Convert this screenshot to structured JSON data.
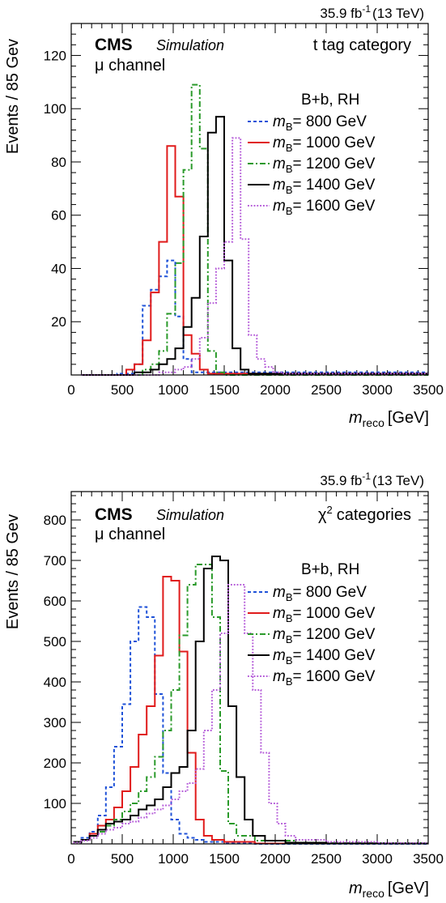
{
  "chart_data": [
    {
      "type": "histogram",
      "lumi_label": "35.9 fb",
      "lumi_sup": "-1",
      "energy": "(13 TeV)",
      "experiment": "CMS",
      "subtitle": "Simulation",
      "channel_symbol": "μ",
      "channel_text": "channel",
      "category": "t tag category",
      "category_math": "",
      "category_sup": "",
      "category_rest": "",
      "legend_header": "B+b, RH",
      "xlabel_var": "m",
      "xlabel_sub": "reco",
      "xlabel_unit": "[GeV]",
      "ylabel": "Events / 85 Gev",
      "xlim": [
        0,
        3500
      ],
      "ylim": [
        0,
        132
      ],
      "xticks": [
        0,
        500,
        1000,
        1500,
        2000,
        2500,
        3000,
        3500
      ],
      "yticks": [
        20,
        40,
        60,
        80,
        100,
        120
      ],
      "legend_position": "top-right",
      "series": [
        {
          "name": "= 800 GeV",
          "label_var": "m",
          "label_sub": "B",
          "color": "#1f52d8",
          "dash": "4,3",
          "edges": [
            100,
            450,
            620,
            700,
            780,
            860,
            940,
            1020,
            1100,
            1180,
            3500
          ],
          "values": [
            0,
            0.5,
            4,
            26,
            32,
            37,
            43,
            22,
            6,
            1
          ]
        },
        {
          "name": "= 1000 GeV",
          "label_var": "m",
          "label_sub": "B",
          "color": "#e01b1b",
          "dash": "",
          "edges": [
            100,
            540,
            620,
            700,
            780,
            860,
            940,
            1020,
            1100,
            1180,
            1260,
            1340,
            3500
          ],
          "values": [
            0,
            2,
            4,
            13,
            31,
            50,
            86,
            67,
            15,
            8,
            2,
            0.5
          ]
        },
        {
          "name": "= 1200 GeV",
          "label_var": "m",
          "label_sub": "B",
          "color": "#2a9a2a",
          "dash": "7,3,2,3",
          "edges": [
            100,
            700,
            780,
            860,
            940,
            1020,
            1100,
            1180,
            1260,
            1340,
            1420,
            1500,
            3500
          ],
          "values": [
            0,
            2,
            4,
            9,
            23,
            42,
            77,
            109,
            85,
            9,
            1,
            0
          ]
        },
        {
          "name": "= 1400 GeV",
          "label_var": "m",
          "label_sub": "B",
          "color": "#000000",
          "dash": "",
          "edges": [
            100,
            620,
            780,
            860,
            940,
            1020,
            1100,
            1180,
            1260,
            1340,
            1420,
            1500,
            1580,
            1660,
            1740,
            3500
          ],
          "values": [
            0,
            1,
            2,
            4,
            6,
            10,
            18,
            29,
            52,
            91,
            97,
            43,
            10,
            2,
            0.5
          ]
        },
        {
          "name": "= 1600 GeV",
          "label_var": "m",
          "label_sub": "B",
          "color": "#b45ad8",
          "dash": "1.8,2",
          "edges": [
            100,
            860,
            1020,
            1100,
            1180,
            1260,
            1340,
            1420,
            1500,
            1580,
            1660,
            1740,
            1820,
            1900,
            1980,
            2060,
            3500
          ],
          "values": [
            0,
            1,
            2,
            3,
            6,
            14,
            27,
            40,
            50,
            89,
            51,
            15,
            6,
            3,
            1,
            0.5
          ]
        }
      ]
    },
    {
      "type": "histogram",
      "lumi_label": "35.9 fb",
      "lumi_sup": "-1",
      "energy": "(13 TeV)",
      "experiment": "CMS",
      "subtitle": "Simulation",
      "channel_symbol": "μ",
      "channel_text": "channel",
      "category": "",
      "category_math": "χ",
      "category_sup": "2",
      "category_rest": "categories",
      "legend_header": "B+b, RH",
      "xlabel_var": "m",
      "xlabel_sub": "reco",
      "xlabel_unit": "[GeV]",
      "ylabel": "Events / 85 Gev",
      "xlim": [
        0,
        3500
      ],
      "ylim": [
        0,
        870
      ],
      "xticks": [
        0,
        500,
        1000,
        1500,
        2000,
        2500,
        3000,
        3500
      ],
      "yticks": [
        100,
        200,
        300,
        400,
        500,
        600,
        700,
        800
      ],
      "legend_position": "top-right",
      "series": [
        {
          "name": "= 800 GeV",
          "label_var": "m",
          "label_sub": "B",
          "color": "#1f52d8",
          "dash": "4,3",
          "edges": [
            20,
            100,
            180,
            260,
            340,
            420,
            500,
            580,
            660,
            740,
            820,
            900,
            980,
            1060,
            1140,
            1220,
            1300,
            1500,
            1800,
            3500
          ],
          "values": [
            5,
            15,
            30,
            70,
            140,
            240,
            345,
            500,
            585,
            560,
            370,
            175,
            60,
            25,
            15,
            10,
            5,
            2,
            0
          ]
        },
        {
          "name": "= 1000 GeV",
          "label_var": "m",
          "label_sub": "B",
          "color": "#e01b1b",
          "dash": "",
          "edges": [
            20,
            100,
            180,
            260,
            340,
            420,
            500,
            580,
            660,
            740,
            820,
            900,
            980,
            1060,
            1140,
            1220,
            1300,
            1380,
            1500,
            1800,
            3500
          ],
          "values": [
            5,
            10,
            25,
            45,
            60,
            90,
            130,
            190,
            270,
            340,
            465,
            660,
            650,
            475,
            225,
            60,
            20,
            10,
            5,
            1
          ]
        },
        {
          "name": "= 1200 GeV",
          "label_var": "m",
          "label_sub": "B",
          "color": "#2a9a2a",
          "dash": "7,3,2,3",
          "edges": [
            20,
            100,
            180,
            260,
            340,
            420,
            500,
            580,
            660,
            740,
            820,
            900,
            980,
            1060,
            1140,
            1220,
            1300,
            1380,
            1460,
            1540,
            1620,
            1800,
            2200,
            3500
          ],
          "values": [
            5,
            10,
            20,
            30,
            45,
            60,
            80,
            100,
            130,
            165,
            215,
            280,
            380,
            515,
            640,
            690,
            690,
            560,
            180,
            50,
            20,
            8,
            2
          ]
        },
        {
          "name": "= 1400 GeV",
          "label_var": "m",
          "label_sub": "B",
          "color": "#000000",
          "dash": "",
          "edges": [
            20,
            100,
            180,
            260,
            340,
            420,
            500,
            580,
            660,
            740,
            820,
            900,
            980,
            1060,
            1140,
            1220,
            1300,
            1380,
            1460,
            1540,
            1620,
            1700,
            1780,
            1900,
            2100,
            2500,
            3500
          ],
          "values": [
            5,
            10,
            20,
            35,
            50,
            55,
            60,
            70,
            85,
            95,
            110,
            140,
            175,
            190,
            280,
            500,
            680,
            710,
            700,
            340,
            165,
            60,
            20,
            8,
            3,
            1
          ]
        },
        {
          "name": "= 1600 GeV",
          "label_var": "m",
          "label_sub": "B",
          "color": "#b45ad8",
          "dash": "1.8,2",
          "edges": [
            20,
            100,
            180,
            260,
            340,
            420,
            500,
            580,
            660,
            740,
            820,
            900,
            980,
            1060,
            1140,
            1220,
            1300,
            1380,
            1460,
            1540,
            1620,
            1700,
            1780,
            1860,
            1940,
            2020,
            2100,
            2200,
            2500,
            3000,
            3500
          ],
          "values": [
            3,
            8,
            15,
            25,
            35,
            40,
            50,
            55,
            65,
            75,
            85,
            95,
            110,
            130,
            150,
            185,
            280,
            380,
            520,
            640,
            640,
            520,
            380,
            225,
            100,
            50,
            20,
            10,
            5,
            2
          ]
        }
      ]
    }
  ]
}
